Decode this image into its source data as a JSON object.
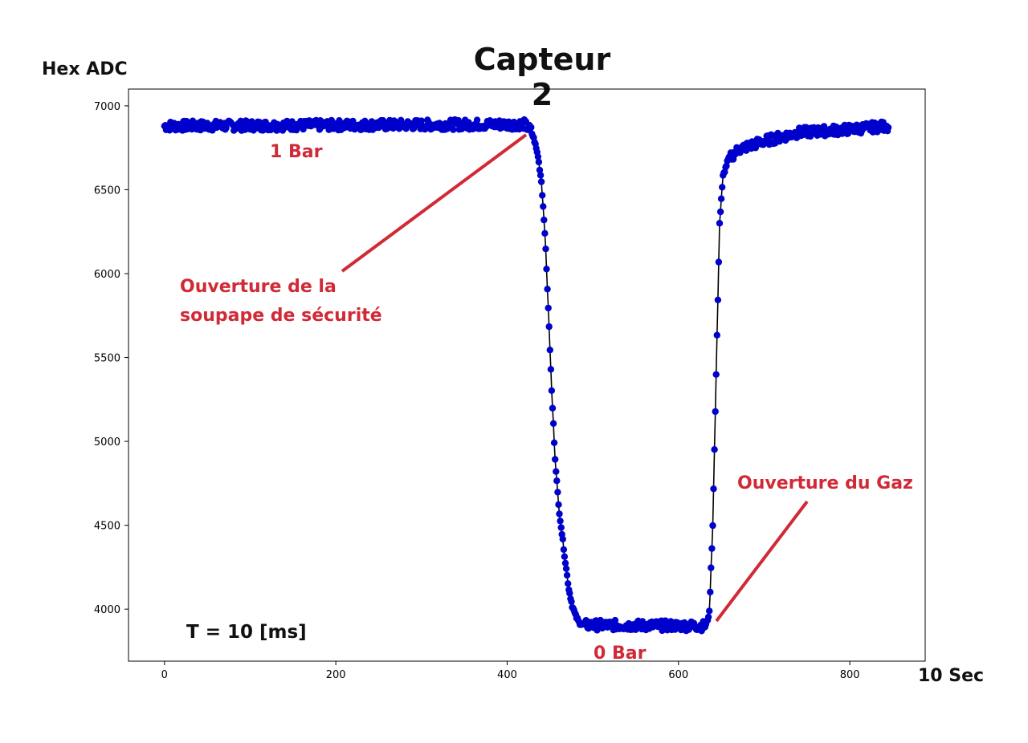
{
  "chart_data": {
    "type": "scatter",
    "title": "Capteur 2",
    "ylabel": "Hex ADC",
    "xlabel": "10 Sec",
    "xlim": [
      -42,
      888
    ],
    "ylim": [
      3690,
      7100
    ],
    "xticks": [
      0,
      200,
      400,
      600,
      800
    ],
    "yticks": [
      4000,
      4500,
      5000,
      5500,
      6000,
      6500,
      7000
    ],
    "grid": false,
    "marker_color": "#0000cc",
    "line_color": "#000000",
    "annotation_color": "#d12a37",
    "series": [
      {
        "style": "line+markers",
        "breakpoints": [
          [
            0,
            6880
          ],
          [
            420,
            6890
          ],
          [
            428,
            6850
          ],
          [
            432,
            6790
          ],
          [
            436,
            6700
          ],
          [
            440,
            6550
          ],
          [
            444,
            6250
          ],
          [
            448,
            5800
          ],
          [
            452,
            5300
          ],
          [
            456,
            4900
          ],
          [
            460,
            4620
          ],
          [
            464,
            4450
          ],
          [
            468,
            4280
          ],
          [
            472,
            4120
          ],
          [
            476,
            4020
          ],
          [
            480,
            3960
          ],
          [
            484,
            3920
          ],
          [
            490,
            3905
          ],
          [
            632,
            3900
          ],
          [
            636,
            3980
          ],
          [
            640,
            4500
          ],
          [
            644,
            5400
          ],
          [
            648,
            6300
          ],
          [
            652,
            6580
          ],
          [
            658,
            6680
          ],
          [
            670,
            6740
          ],
          [
            700,
            6790
          ],
          [
            740,
            6840
          ],
          [
            800,
            6860
          ],
          [
            845,
            6880
          ]
        ],
        "noise_amplitude": 30,
        "n_points": 846
      }
    ],
    "annotations": [
      {
        "text": "1 Bar"
      },
      {
        "text": "Ouverture de la\nsoupape de sécurité"
      },
      {
        "text": "Ouverture du Gaz"
      },
      {
        "text": "0 Bar"
      },
      {
        "text": "T = 10 [ms]"
      }
    ]
  }
}
